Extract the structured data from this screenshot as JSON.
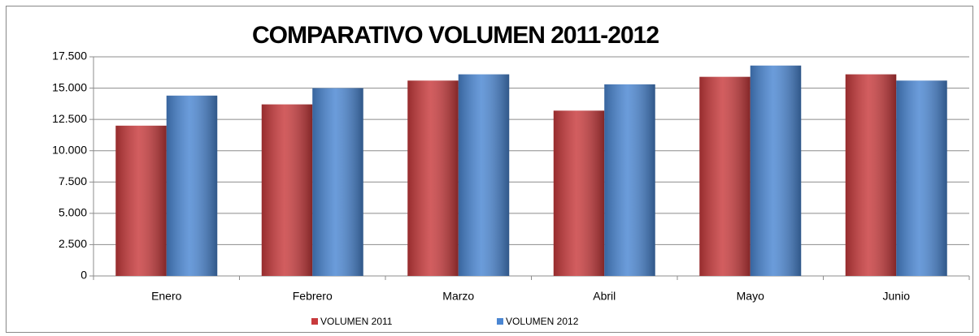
{
  "chart_data": {
    "type": "bar",
    "title": "COMPARATIVO VOLUMEN 2011-2012",
    "categories": [
      "Enero",
      "Febrero",
      "Marzo",
      "Abril",
      "Mayo",
      "Junio"
    ],
    "series": [
      {
        "name": "VOLUMEN 2011",
        "color": "#c83a3c",
        "values": [
          12000,
          13700,
          15600,
          13200,
          15900,
          16100
        ]
      },
      {
        "name": "VOLUMEN 2012",
        "color": "#4a86d2",
        "values": [
          14400,
          15000,
          16100,
          15300,
          16800,
          15600
        ]
      }
    ],
    "ylim": [
      0,
      17500
    ],
    "yticks": [
      0,
      {
        "value": 2500,
        "label": "2.500"
      },
      {
        "value": 5000,
        "label": "5.000"
      },
      {
        "value": 7500,
        "label": "7.500"
      },
      {
        "value": 10000,
        "label": "10.000"
      },
      {
        "value": 12500,
        "label": "12.500"
      },
      {
        "value": 15000,
        "label": "15.000"
      },
      {
        "value": 17500,
        "label": "17.500"
      }
    ],
    "grid": true,
    "legend": "bottom"
  }
}
